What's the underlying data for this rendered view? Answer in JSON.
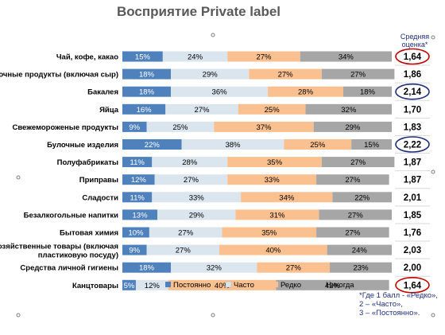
{
  "chart_data": {
    "type": "bar",
    "orientation": "horizontal",
    "stacked": true,
    "title_prefix": "Восприятие",
    "title_suffix": "Private label",
    "categories": [
      "Чай, кофе, какао",
      "Молочные продукты (включая сыр)",
      "Бакалея",
      "Яйца",
      "Свежемороженые продукты",
      "Булочные изделия",
      "Полуфабрикаты",
      "Приправы",
      "Сладости",
      "Безалкогольные напитки",
      "Бытовая химия",
      [
        "Хозяйственные товары (включая",
        "пластиковую посуду)"
      ],
      "Средства личной гигиены",
      "Канцтовары"
    ],
    "series": [
      {
        "name": "Постоянно",
        "color": "#4f81bd",
        "label_color": "#ffffff",
        "values": [
          15,
          18,
          18,
          16,
          9,
          22,
          11,
          12,
          11,
          13,
          10,
          9,
          18,
          5
        ]
      },
      {
        "name": "Часто",
        "color": "#dbe5ee",
        "label_color": "#000000",
        "values": [
          24,
          29,
          36,
          27,
          25,
          38,
          28,
          27,
          33,
          29,
          27,
          27,
          32,
          12
        ]
      },
      {
        "name": "Редко",
        "color": "#fac090",
        "label_color": "#000000",
        "values": [
          27,
          27,
          28,
          25,
          37,
          25,
          35,
          33,
          34,
          31,
          35,
          40,
          27,
          40
        ]
      },
      {
        "name": "Никогда",
        "color": "#a6a6a6",
        "label_color": "#000000",
        "values": [
          34,
          27,
          18,
          32,
          29,
          15,
          27,
          27,
          22,
          27,
          27,
          24,
          23,
          42
        ]
      }
    ],
    "value_suffix": "%",
    "xlim": [
      0,
      100
    ],
    "legend_position": "bottom",
    "average_score": {
      "header": [
        "Средняя",
        "оценка*"
      ],
      "values": [
        "1,64",
        "1,86",
        "2,14",
        "1,70",
        "1,83",
        "2,22",
        "1,87",
        "1,87",
        "2,01",
        "1,85",
        "1,76",
        "2,03",
        "2,00",
        "1,64"
      ],
      "highlight": [
        {
          "index": 0,
          "color": "#c00000"
        },
        {
          "index": 2,
          "color": "#1f2d7a"
        },
        {
          "index": 5,
          "color": "#1f2d7a"
        },
        {
          "index": 13,
          "color": "#c00000"
        }
      ]
    },
    "footnote": [
      "*Где 1 балл - «Редко»,",
      "2 – «Часто»,",
      "3 – «Постоянно»."
    ]
  }
}
